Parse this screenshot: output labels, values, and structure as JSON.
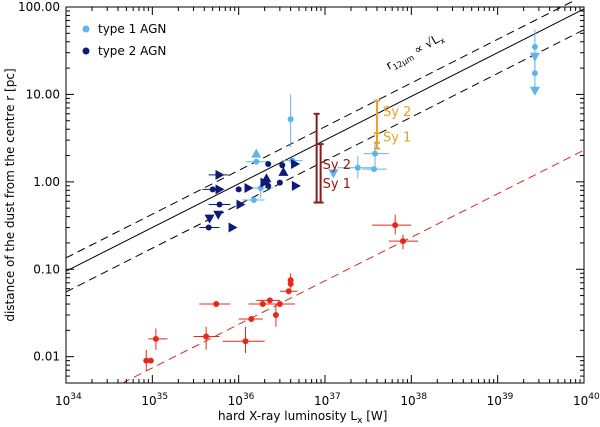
{
  "chart_data": {
    "type": "scatter",
    "title": "",
    "xlabel_main": "hard X-ray luminosity L",
    "xlabel_sub": "x",
    "xlabel_unit": " [W]",
    "ylabel": "distance of the dust from the centre r [pc]",
    "xscale": "log",
    "yscale": "log",
    "xlim": [
      1e+34,
      1e+40
    ],
    "ylim": [
      0.005,
      100
    ],
    "x_ticks": [
      {
        "base": "10",
        "exp": "34"
      },
      {
        "base": "10",
        "exp": "35"
      },
      {
        "base": "10",
        "exp": "36"
      },
      {
        "base": "10",
        "exp": "37"
      },
      {
        "base": "10",
        "exp": "38"
      },
      {
        "base": "10",
        "exp": "39"
      },
      {
        "base": "10",
        "exp": "40"
      }
    ],
    "y_ticks": [
      "0.01",
      "0.10",
      "1.00",
      "10.00",
      "100.00"
    ],
    "legend": {
      "placement": "top-left",
      "entries": [
        {
          "label": "type 1 AGN",
          "color": "#5fb4ef"
        },
        {
          "label": "type 2 AGN",
          "color": "#0d1a78"
        }
      ]
    },
    "relation_label": {
      "r": "r",
      "sub": "12μm",
      "prop": "∝",
      "sqrt": "√",
      "L": "L",
      "Lsub": "x"
    },
    "sy_ranges": [
      {
        "label": "Sy 2",
        "color": "#8b1a1a",
        "lo": 0.58,
        "hi": 6.0,
        "x": 8e+36
      },
      {
        "label": "Sy 1",
        "color": "#8b1a1a",
        "lo": 0.58,
        "hi": 2.7,
        "x": 8e+36
      },
      {
        "label": "Sy 2",
        "color": "#e8a028",
        "lo": 2.8,
        "hi": 8.5,
        "x": 4e+37
      },
      {
        "label": "Sy 1",
        "color": "#e8a028",
        "lo": 2.4,
        "hi": 3.6,
        "x": 4e+37
      }
    ],
    "lines": [
      {
        "name": "fit",
        "style": "solid",
        "color": "#000000",
        "points": [
          [
            1e+34,
            0.095
          ],
          [
            1e+40,
            95
          ]
        ]
      },
      {
        "name": "upper",
        "style": "dashed",
        "color": "#000000",
        "points": [
          [
            1e+34,
            0.135
          ],
          [
            1e+40,
            135
          ]
        ]
      },
      {
        "name": "lower",
        "style": "dashed",
        "color": "#000000",
        "points": [
          [
            1e+34,
            0.055
          ],
          [
            1e+40,
            55
          ]
        ]
      },
      {
        "name": "red-fit",
        "style": "dashed",
        "color": "#dd2a1a",
        "points": [
          [
            4.5e+34,
            0.005
          ],
          [
            1e+40,
            2.3
          ]
        ]
      }
    ],
    "series": [
      {
        "name": "type 1 AGN",
        "color": "#5fb4ef",
        "points": [
          {
            "x": 4e+36,
            "y": 5.2,
            "ylo": 2.5,
            "yhi": 10
          },
          {
            "x": 1.6e+36,
            "y": 1.7,
            "xlo": 1.2e+36,
            "xhi": 2.2e+36
          },
          {
            "x": 1.8e+36,
            "y": 0.85,
            "xlo": 1.3e+36,
            "xhi": 2.5e+36,
            "ylo": 0.65,
            "yhi": 1.1
          },
          {
            "x": 1.5e+36,
            "y": 0.62,
            "xlo": 1.1e+36,
            "xhi": 2e+36
          },
          {
            "x": 4.2e+36,
            "y": 1.75,
            "xlo": 3.2e+36,
            "xhi": 5.5e+36
          },
          {
            "x": 2.4e+37,
            "y": 1.45,
            "xlo": 1.4e+37,
            "xhi": 3.5e+37,
            "ylo": 1.1,
            "yhi": 2.0
          },
          {
            "x": 3.8e+37,
            "y": 2.1,
            "xlo": 2.8e+37,
            "xhi": 5.5e+37,
            "ylo": 1.4,
            "yhi": 2.8
          },
          {
            "x": 3.7e+37,
            "y": 1.4,
            "xlo": 2.7e+37,
            "xhi": 5.2e+37
          },
          {
            "x": 2.7e+39,
            "y": 35,
            "ylo": 20,
            "yhi": 55,
            "shape": "dot"
          },
          {
            "x": 2.7e+39,
            "y": 17.5,
            "ylo": 11,
            "yhi": 25
          },
          {
            "x": 2.7e+39,
            "y": 27,
            "shape": "down"
          },
          {
            "x": 2.7e+39,
            "y": 11,
            "shape": "down"
          },
          {
            "x": 1.6e+36,
            "y": 2.1,
            "shape": "up"
          },
          {
            "x": 1.25e+37,
            "y": 1.25,
            "shape": "down"
          }
        ]
      },
      {
        "name": "type 2 AGN",
        "color": "#0d1a78",
        "points": [
          {
            "x": 5.8e+35,
            "y": 1.2,
            "xlo": 4.5e+35,
            "xhi": 7.5e+35
          },
          {
            "x": 5e+35,
            "y": 0.82,
            "xlo": 3.8e+35,
            "xhi": 6.5e+35
          },
          {
            "x": 6e+35,
            "y": 0.55,
            "xlo": 4.5e+35,
            "xhi": 8e+35
          },
          {
            "x": 4.5e+35,
            "y": 0.3,
            "xlo": 3.5e+35,
            "xhi": 6e+35
          },
          {
            "x": 2.2e+36,
            "y": 1.6
          },
          {
            "x": 3.2e+36,
            "y": 1.55
          },
          {
            "x": 3e+36,
            "y": 0.98
          },
          {
            "x": 2.2e+36,
            "y": 0.9
          },
          {
            "x": 1e+36,
            "y": 0.82
          },
          {
            "x": 6e+35,
            "y": 1.2,
            "shape": "right"
          },
          {
            "x": 1.3e+36,
            "y": 0.85,
            "shape": "right"
          },
          {
            "x": 4.5e+36,
            "y": 1.6,
            "shape": "right"
          },
          {
            "x": 2e+36,
            "y": 0.98,
            "shape": "right"
          },
          {
            "x": 4.6e+36,
            "y": 0.9,
            "shape": "right"
          },
          {
            "x": 8.5e+35,
            "y": 0.3,
            "shape": "right"
          },
          {
            "x": 1.05e+36,
            "y": 0.55,
            "shape": "right"
          },
          {
            "x": 6e+35,
            "y": 0.82,
            "shape": "right"
          },
          {
            "x": 2.1e+36,
            "y": 1.1,
            "shape": "up"
          },
          {
            "x": 3.3e+36,
            "y": 1.3,
            "shape": "up"
          },
          {
            "x": 5.8e+35,
            "y": 0.42,
            "shape": "down"
          },
          {
            "x": 4.6e+35,
            "y": 0.38,
            "shape": "down"
          }
        ]
      },
      {
        "name": "",
        "color": "#e8291a",
        "points": [
          {
            "x": 6.5e+37,
            "y": 0.32,
            "xlo": 3.5e+37,
            "xhi": 1e+38,
            "ylo": 0.25,
            "yhi": 0.42
          },
          {
            "x": 8e+37,
            "y": 0.21,
            "xlo": 5.5e+37,
            "xhi": 1.2e+38,
            "ylo": 0.17,
            "yhi": 0.25
          },
          {
            "x": 4e+36,
            "y": 0.075,
            "ylo": 0.06,
            "yhi": 0.09
          },
          {
            "x": 4e+36,
            "y": 0.068
          },
          {
            "x": 3.8e+36,
            "y": 0.056,
            "xlo": 3e+36,
            "xhi": 4.8e+36
          },
          {
            "x": 3e+36,
            "y": 0.04,
            "xlo": 1.8e+36,
            "xhi": 4.5e+36
          },
          {
            "x": 2.3e+36,
            "y": 0.044,
            "xlo": 1.6e+36,
            "xhi": 3e+36
          },
          {
            "x": 1.9e+36,
            "y": 0.04,
            "xlo": 1.3e+36,
            "xhi": 2.8e+36
          },
          {
            "x": 2.7e+36,
            "y": 0.03,
            "ylo": 0.022,
            "yhi": 0.04
          },
          {
            "x": 1.4e+36,
            "y": 0.027,
            "xlo": 1e+36,
            "xhi": 1.9e+36
          },
          {
            "x": 1.2e+36,
            "y": 0.015,
            "xlo": 6.5e+35,
            "xhi": 2e+36,
            "ylo": 0.011,
            "yhi": 0.022
          },
          {
            "x": 5.5e+35,
            "y": 0.04,
            "xlo": 3.5e+35,
            "xhi": 8e+35
          },
          {
            "x": 4.2e+35,
            "y": 0.017,
            "xlo": 3e+35,
            "xhi": 6e+35,
            "ylo": 0.012,
            "yhi": 0.022
          },
          {
            "x": 1.1e+35,
            "y": 0.016,
            "xlo": 9e+34,
            "xhi": 1.5e+35,
            "ylo": 0.012,
            "yhi": 0.021
          },
          {
            "x": 8.5e+34,
            "y": 0.009,
            "ylo": 0.007,
            "yhi": 0.012
          },
          {
            "x": 9.6e+34,
            "y": 0.009
          }
        ]
      }
    ]
  }
}
